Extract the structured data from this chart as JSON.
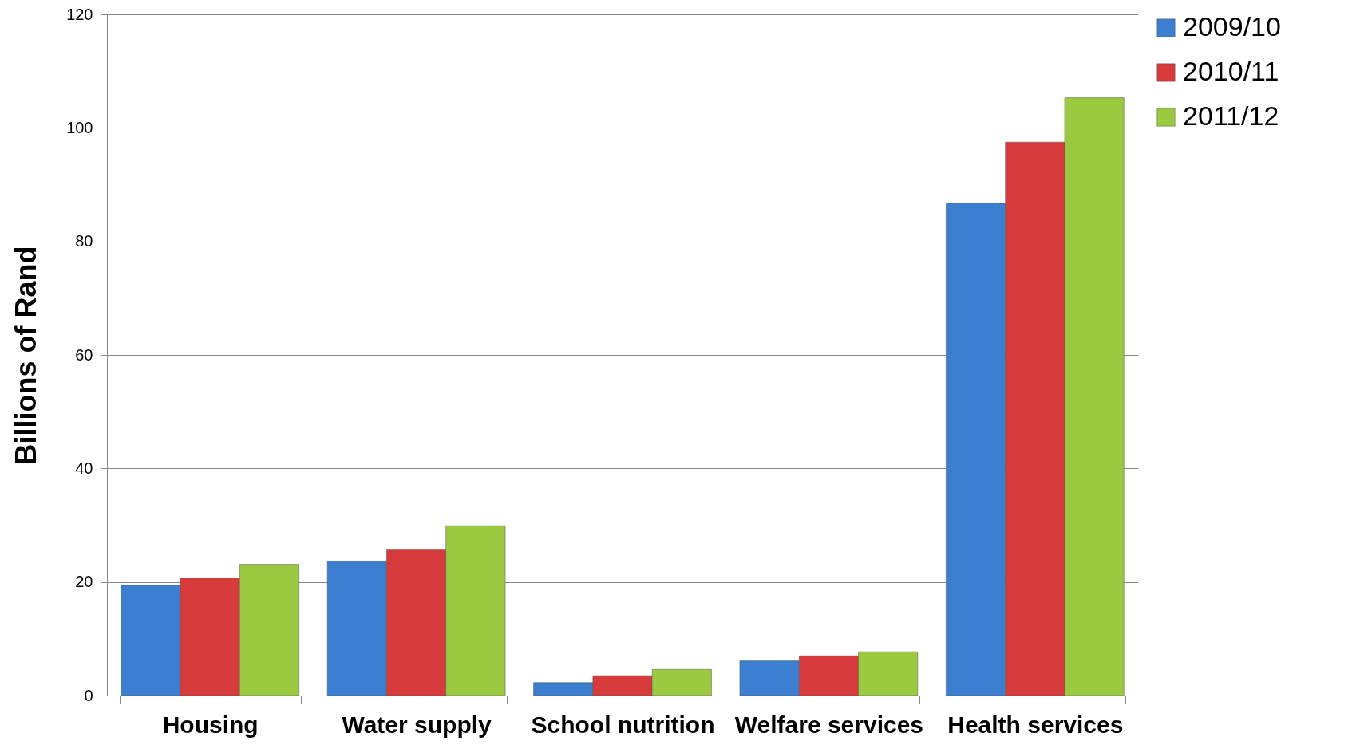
{
  "chart_data": {
    "type": "bar",
    "ylabel": "Billions of Rand",
    "categories": [
      "Housing",
      "Water supply",
      "School nutrition",
      "Welfare services",
      "Health services"
    ],
    "series": [
      {
        "name": "2009/10",
        "color": "#3c7fd0",
        "values": [
          19.4,
          23.7,
          2.3,
          6.1,
          86.7
        ]
      },
      {
        "name": "2010/11",
        "color": "#d63a3a",
        "values": [
          20.7,
          25.8,
          3.5,
          7.0,
          97.5
        ]
      },
      {
        "name": "2011/12",
        "color": "#9bc940",
        "values": [
          23.1,
          29.9,
          4.6,
          7.7,
          105.3
        ]
      }
    ],
    "ylim": [
      0,
      120
    ],
    "yticks": [
      0,
      20,
      40,
      60,
      80,
      100,
      120
    ],
    "grid": "y",
    "legend": "right"
  }
}
